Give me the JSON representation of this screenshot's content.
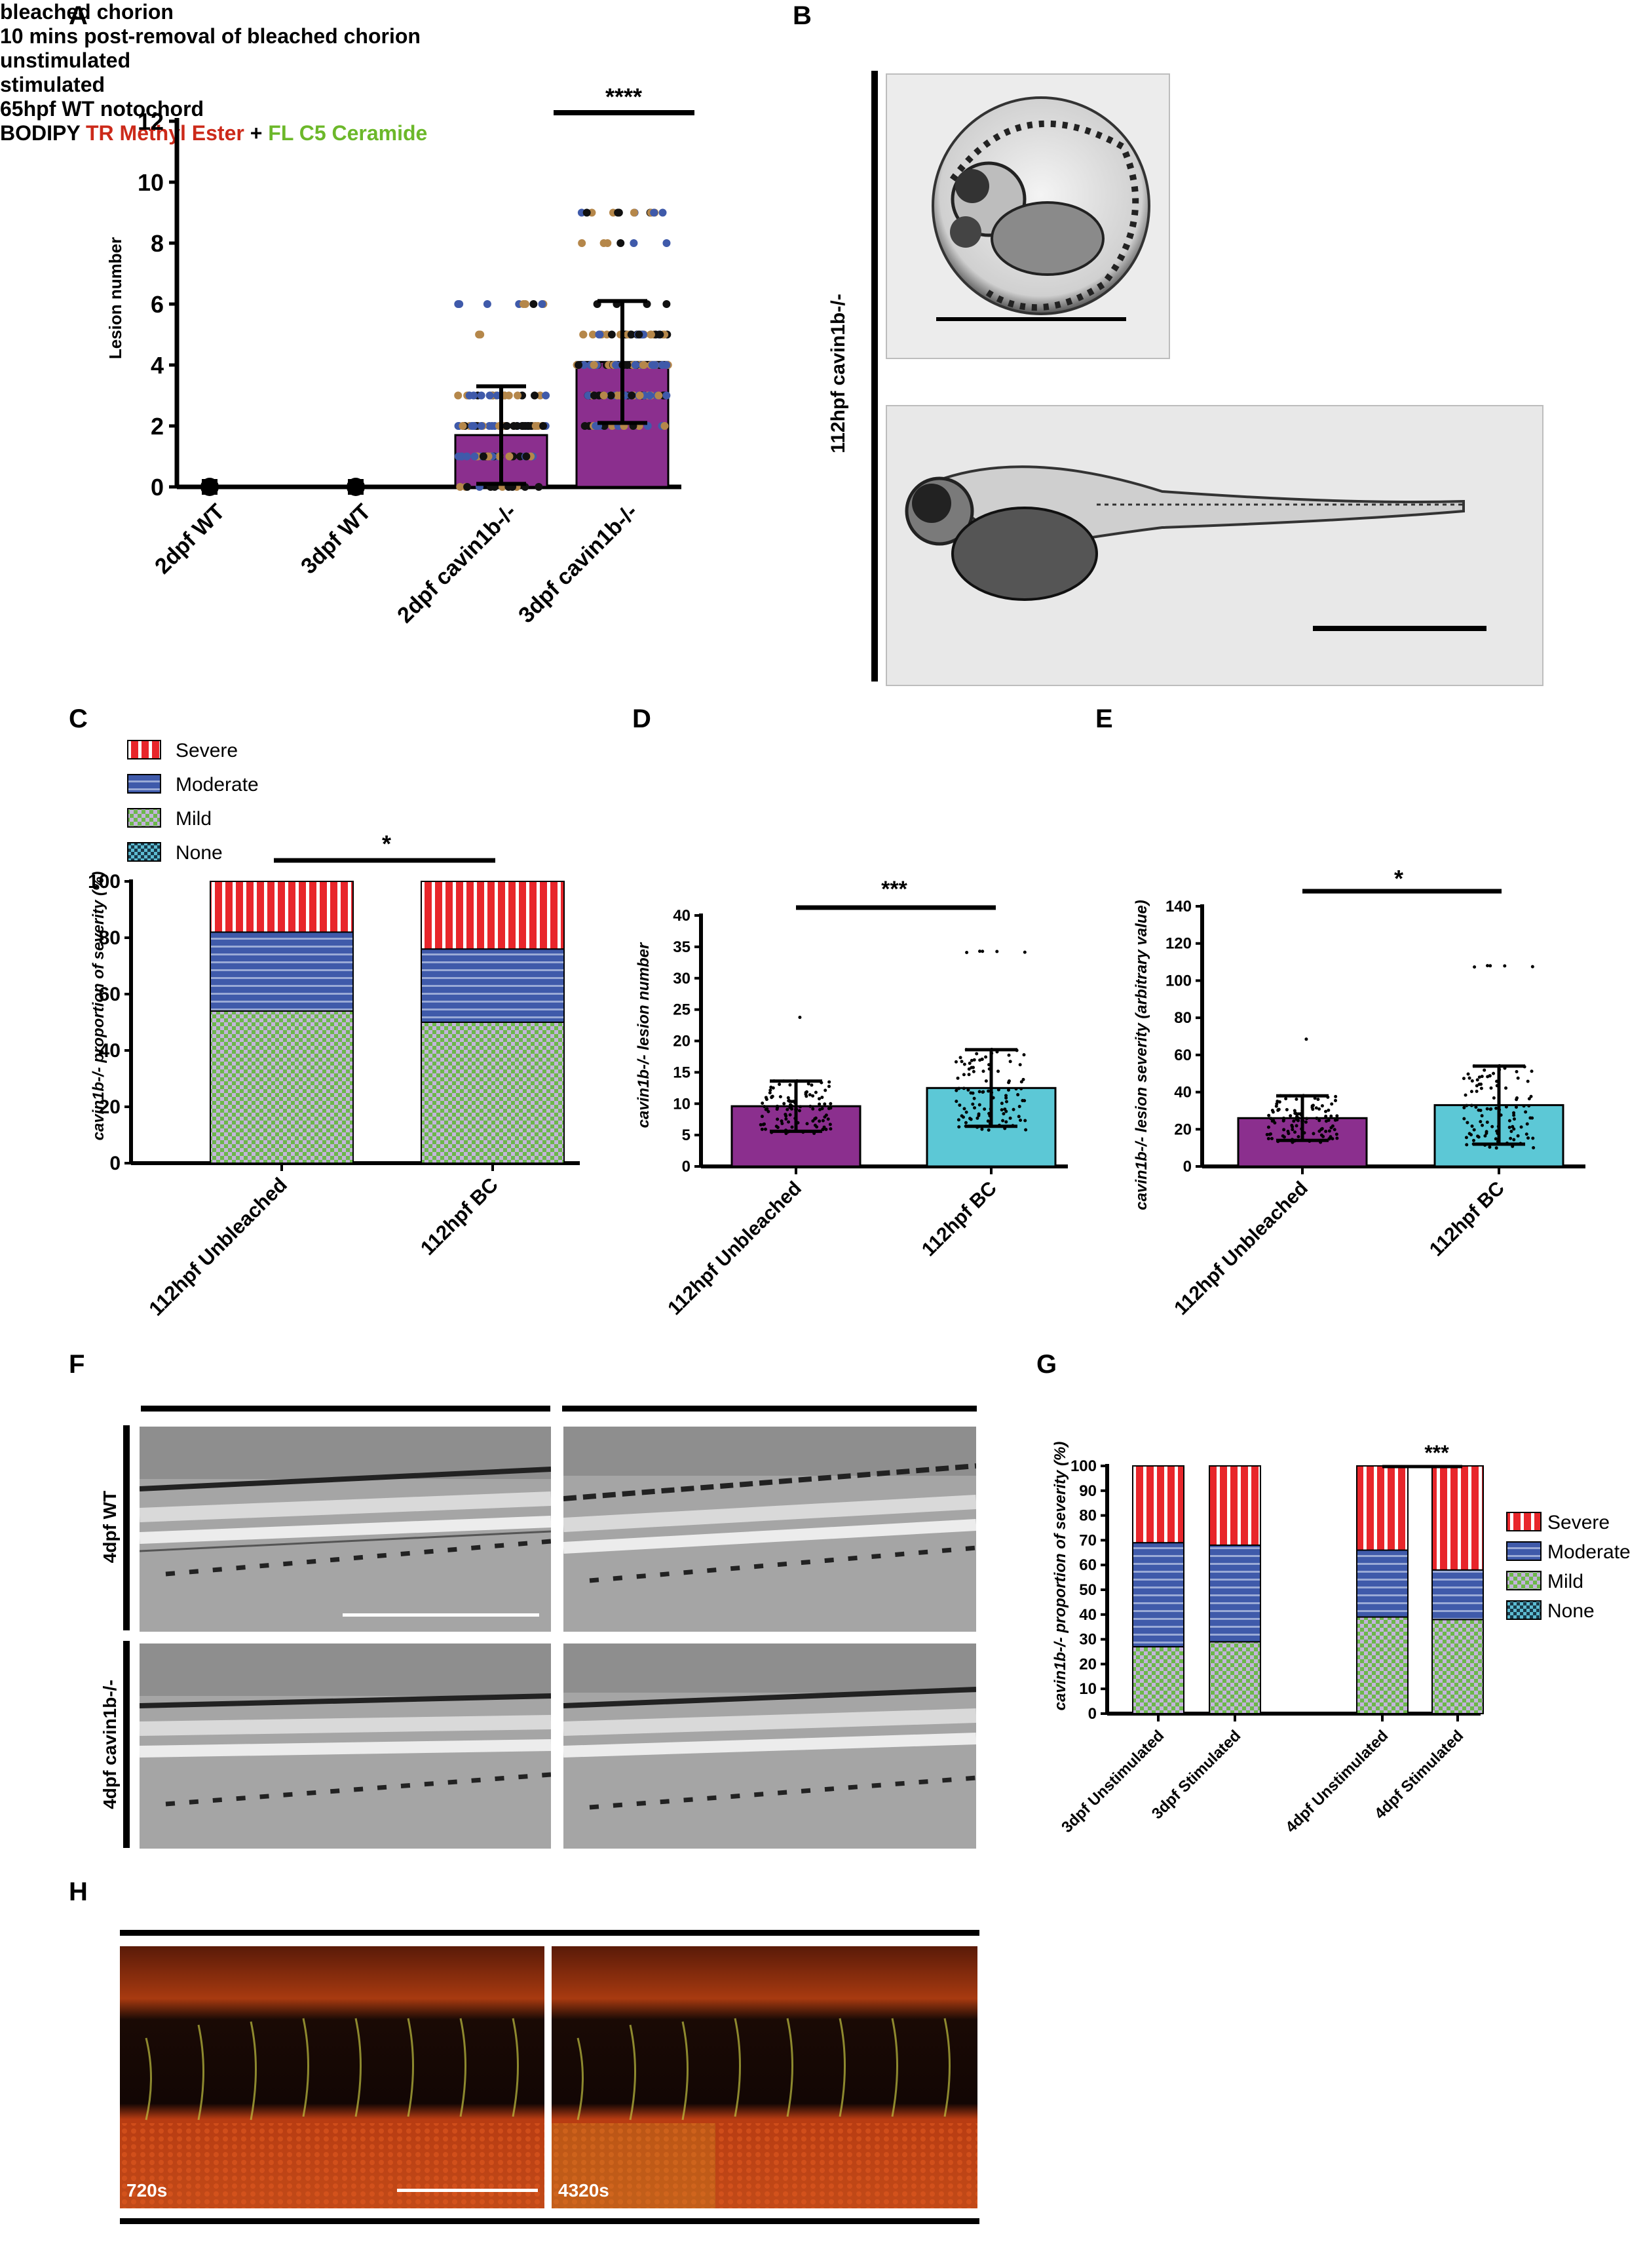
{
  "letters": {
    "A": "A",
    "B": "B",
    "C": "C",
    "D": "D",
    "E": "E",
    "F": "F",
    "G": "G",
    "H": "H"
  },
  "colors": {
    "purple": "#8B2F8E",
    "cyan": "#5CC8D6",
    "severe": "#E8262B",
    "moderate": "#3F5AAA",
    "mild": "#6CB84A",
    "none": "#5DBCD2",
    "dot_brown": "#B5874A",
    "dot_blue": "#3F5AAA",
    "dot_black": "#111111"
  },
  "panelA": {
    "sig": "****",
    "ylabel": "Lesion number",
    "chart_data": {
      "type": "bar",
      "categories": [
        "2dpf WT",
        "3dpf WT",
        "2dpf cavin1b-/-",
        "3dpf cavin1b-/-"
      ],
      "values": [
        0,
        0,
        1.7,
        4.1
      ],
      "error_sd": [
        0,
        0,
        1.6,
        2.0
      ],
      "ylim": [
        0,
        12
      ],
      "yticks": [
        "0",
        "2",
        "4",
        "6",
        "8",
        "10",
        "12"
      ],
      "ylabel": "Lesion number",
      "annotation": "****"
    }
  },
  "panelB": {
    "side_label": "112hpf cavin1b-/-",
    "top_title": "bleached chorion",
    "bottom_title": "10 mins post-removal of bleached chorion"
  },
  "panelC": {
    "legend": [
      "Severe",
      "Moderate",
      "Mild",
      "None"
    ],
    "sig": "*",
    "ylabel": "cavin1b-/- proportion of severity  (%)",
    "chart_data": {
      "type": "bar",
      "stacked": true,
      "categories": [
        "112hpf Unbleached",
        "112hpf BC"
      ],
      "series": [
        {
          "name": "Mild",
          "values": [
            54,
            50
          ]
        },
        {
          "name": "Moderate",
          "values": [
            28,
            26
          ]
        },
        {
          "name": "Severe",
          "values": [
            18,
            24
          ]
        }
      ],
      "ylim": [
        0,
        100
      ],
      "yticks": [
        "0",
        "20",
        "40",
        "60",
        "80",
        "100"
      ],
      "ylabel": "cavin1b-/- proportion of severity  (%)",
      "annotation": "*"
    }
  },
  "panelD": {
    "sig": "***",
    "ylabel": "cavin1b-/- lesion number",
    "chart_data": {
      "type": "bar",
      "categories": [
        "112hpf Unbleached",
        "112hpf BC"
      ],
      "values": [
        9.6,
        12.5
      ],
      "error_sd": [
        4,
        6.1
      ],
      "ylim": [
        0,
        40
      ],
      "yticks": [
        "0",
        "5",
        "10",
        "15",
        "20",
        "25",
        "30",
        "35",
        "40"
      ],
      "ylabel": "cavin1b-/- lesion number",
      "annotation": "***"
    }
  },
  "panelE": {
    "sig": "*",
    "ylabel": "cavin1b-/- lesion severity (arbitrary value)",
    "chart_data": {
      "type": "bar",
      "categories": [
        "112hpf Unbleached",
        "112hpf BC"
      ],
      "values": [
        26,
        33
      ],
      "error_sd": [
        12,
        21
      ],
      "ylim": [
        0,
        140
      ],
      "yticks": [
        "0",
        "20",
        "40",
        "60",
        "80",
        "100",
        "120",
        "140"
      ],
      "ylabel": "cavin1b-/- lesion severity (arbitrary value)",
      "annotation": "*"
    }
  },
  "panelF": {
    "col_unstim": "unstimulated",
    "col_stim": "stimulated",
    "row_wt": "4dpf WT",
    "row_mut": "4dpf cavin1b-/-"
  },
  "panelG": {
    "legend": [
      "Severe",
      "Moderate",
      "Mild",
      "None"
    ],
    "sig": "***",
    "ylabel": "cavin1b-/- proportion of severity  (%)",
    "chart_data": {
      "type": "bar",
      "stacked": true,
      "categories": [
        "3dpf Unstimulated",
        "3dpf Stimulated",
        "4dpf Unstimulated",
        "4dpf Stimulated"
      ],
      "series": [
        {
          "name": "Mild",
          "values": [
            27,
            29,
            39,
            38
          ]
        },
        {
          "name": "Moderate",
          "values": [
            42,
            39,
            27,
            20
          ]
        },
        {
          "name": "Severe",
          "values": [
            31,
            32,
            34,
            42
          ]
        }
      ],
      "ylim": [
        0,
        100
      ],
      "yticks": [
        "0",
        "10",
        "20",
        "30",
        "40",
        "50",
        "60",
        "70",
        "80",
        "90",
        "100"
      ],
      "ylabel": "cavin1b-/- proportion of severity  (%)",
      "annotation": "***"
    }
  },
  "panelH": {
    "title": "65hpf WT notochord",
    "time_left": "720s",
    "time_right": "4320s",
    "caption": {
      "p1": "BODIPY ",
      "p2": "TR Methyl Ester",
      "p3": " + ",
      "p4": "FL C5 Ceramide"
    }
  }
}
